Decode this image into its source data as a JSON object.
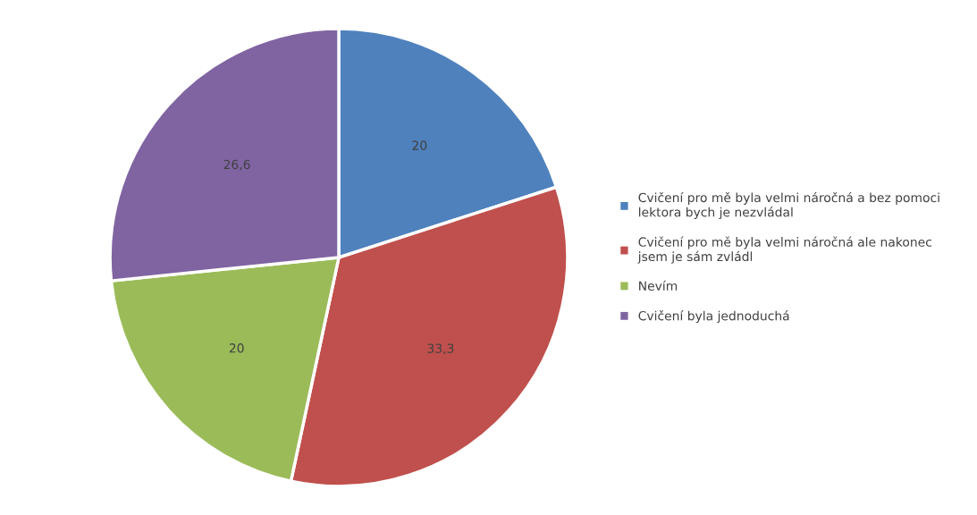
{
  "chart_data": {
    "type": "pie",
    "categories": [
      "Cvičení pro mě byla velmi náročná a bez pomoci lektora bych je nezvládal",
      "Cvičení pro mě byla velmi náročná ale nakonec jsem je sám zvládl",
      "Nevím",
      "Cvičení byla jednoduchá"
    ],
    "values": [
      20,
      33.3,
      20,
      26.6
    ],
    "value_labels": [
      "20",
      "33,3",
      "20",
      "26,6"
    ],
    "colors": [
      "#4f81bd",
      "#c0504d",
      "#9bbb59",
      "#8064a2"
    ],
    "legend": "right"
  }
}
